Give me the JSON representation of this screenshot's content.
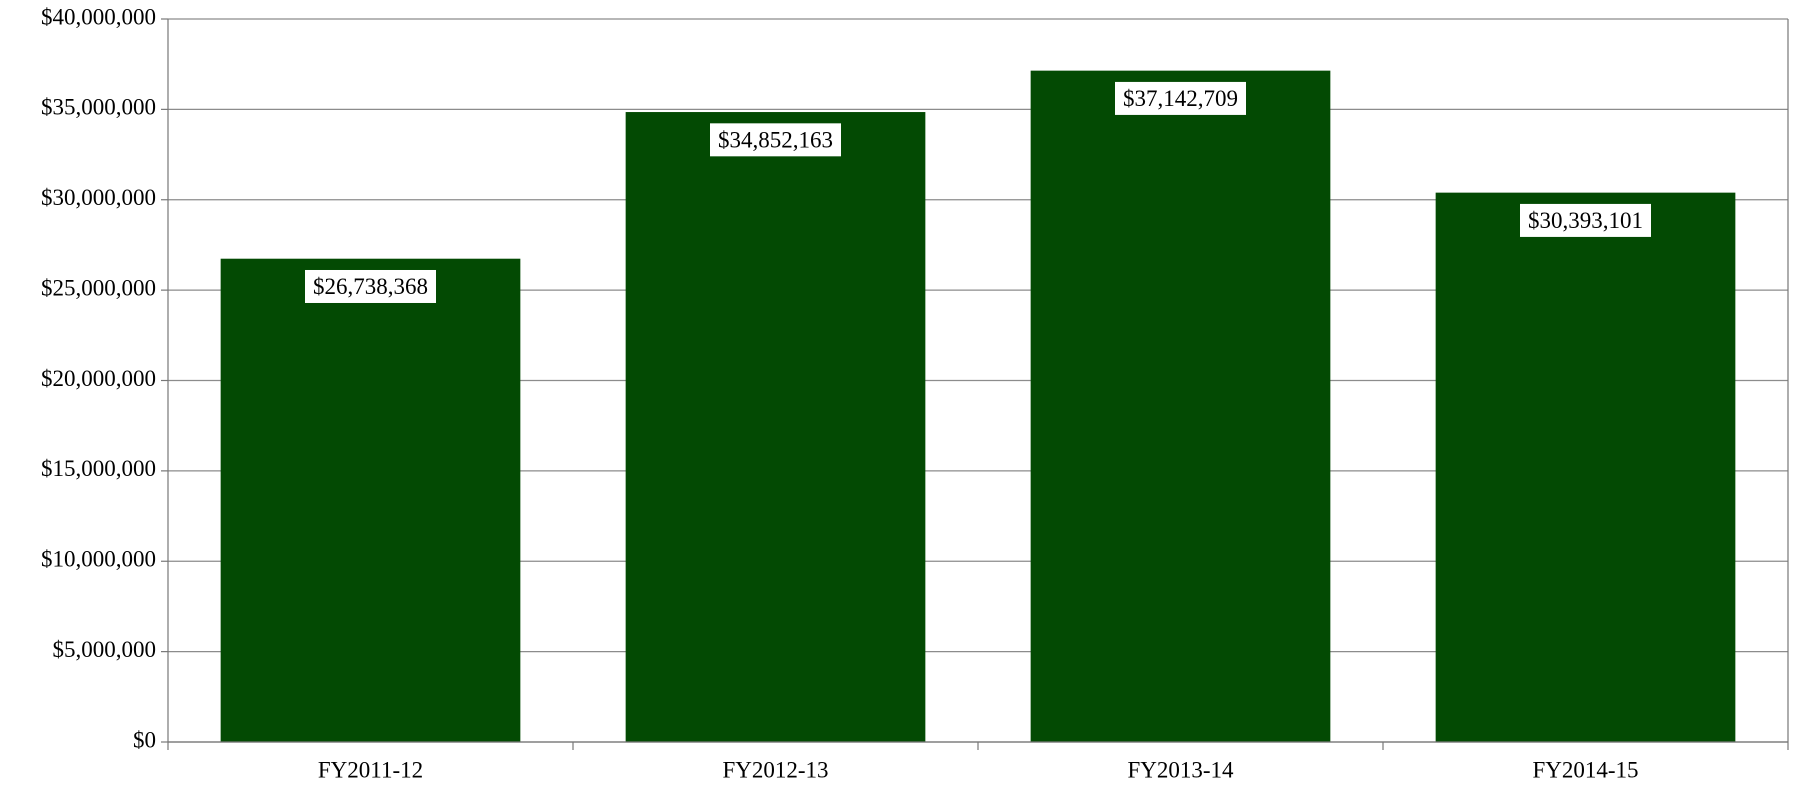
{
  "chart_data": {
    "type": "bar",
    "categories": [
      "FY2011-12",
      "FY2012-13",
      "FY2013-14",
      "FY2014-15"
    ],
    "values": [
      26738368,
      34852163,
      37142709,
      30393101
    ],
    "value_labels": [
      "$26,738,368",
      "$34,852,163",
      "$37,142,709",
      "$30,393,101"
    ],
    "color": "#034a03",
    "ylim": [
      0,
      40000000
    ],
    "yticks": [
      {
        "value": 0,
        "label": "$0"
      },
      {
        "value": 5000000,
        "label": "$5,000,000"
      },
      {
        "value": 10000000,
        "label": "$10,000,000"
      },
      {
        "value": 15000000,
        "label": "$15,000,000"
      },
      {
        "value": 20000000,
        "label": "$20,000,000"
      },
      {
        "value": 25000000,
        "label": "$25,000,000"
      },
      {
        "value": 30000000,
        "label": "$30,000,000"
      },
      {
        "value": 35000000,
        "label": "$35,000,000"
      },
      {
        "value": 40000000,
        "label": "$40,000,000"
      }
    ],
    "grid": true
  }
}
